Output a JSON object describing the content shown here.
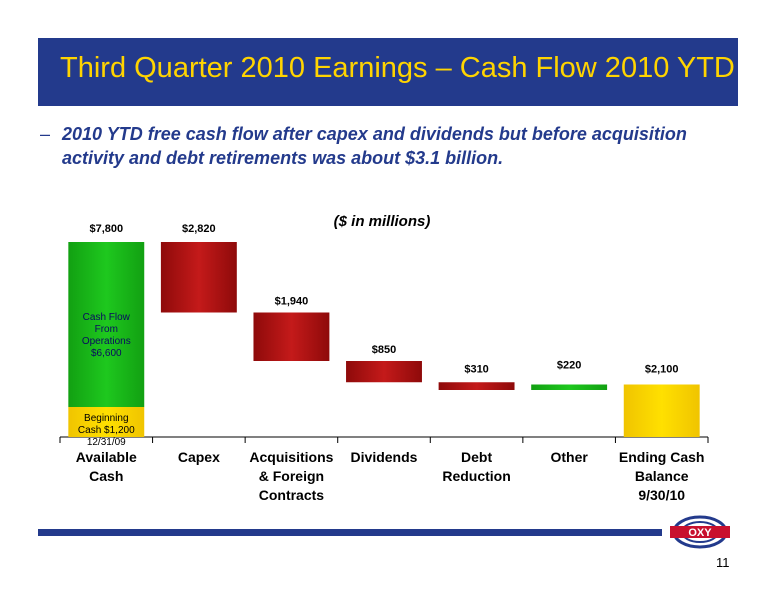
{
  "header": {
    "title": "Third Quarter 2010 Earnings – Cash Flow 2010 YTD"
  },
  "bullet": {
    "dash": "–",
    "text": "2010 YTD free cash flow after capex and dividends but before acquisition activity and debt retirements was about $3.1 billion."
  },
  "logo": {
    "text": "OXY"
  },
  "page_number": "11",
  "colors": {
    "header_bg": "#233a8c",
    "header_text": "#ffd400",
    "bullet_text": "#233a8c",
    "green": "#1ec81e",
    "red": "#c41a1a",
    "yellow": "#ffe000"
  },
  "chart_data": {
    "type": "bar",
    "subtype": "waterfall",
    "subtitle": "($ in millions)",
    "categories": [
      "Available\nCash",
      "Capex",
      "Acquisitions\n& Foreign\nContracts",
      "Dividends",
      "Debt\nReduction",
      "Other",
      "Ending Cash\nBalance\n9/30/10"
    ],
    "bars": [
      {
        "category": "Available Cash",
        "label": "$7,800",
        "start": 0,
        "end": 7800,
        "kind": "total-stack",
        "segments": [
          {
            "name": "Beginning Cash $1,200 12/31/09",
            "lines": [
              "Beginning",
              "Cash $1,200",
              "12/31/09"
            ],
            "from": 0,
            "to": 1200,
            "color": "yellow"
          },
          {
            "name": "Cash Flow From Operations $6,600",
            "lines": [
              "Cash Flow",
              "From",
              "Operations",
              "$6,600"
            ],
            "from": 1200,
            "to": 7800,
            "color": "green"
          }
        ]
      },
      {
        "category": "Capex",
        "label": "$2,820",
        "start": 7800,
        "end": 4980,
        "kind": "decrease"
      },
      {
        "category": "Acquisitions & Foreign Contracts",
        "label": "$1,940",
        "start": 4980,
        "end": 3040,
        "kind": "decrease"
      },
      {
        "category": "Dividends",
        "label": "$850",
        "start": 3040,
        "end": 2190,
        "kind": "decrease"
      },
      {
        "category": "Debt Reduction",
        "label": "$310",
        "start": 2190,
        "end": 1880,
        "kind": "decrease"
      },
      {
        "category": "Other",
        "label": "$220",
        "start": 1880,
        "end": 2100,
        "kind": "increase"
      },
      {
        "category": "Ending Cash Balance 9/30/10",
        "label": "$2,100",
        "start": 0,
        "end": 2100,
        "kind": "total"
      }
    ],
    "ylim": [
      0,
      7800
    ],
    "grid": false,
    "legend": "none"
  }
}
